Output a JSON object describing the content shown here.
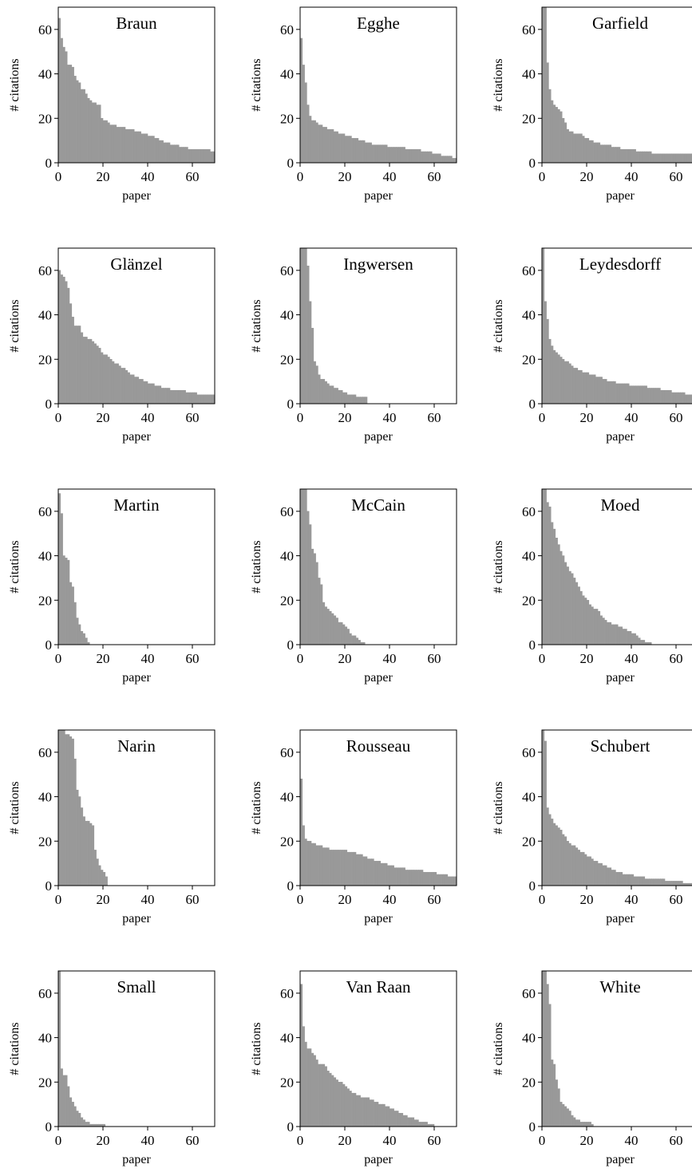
{
  "chart_data": [
    {
      "type": "bar",
      "title": "Braun",
      "xlabel": "paper",
      "ylabel": "# citations",
      "xlim": [
        0,
        70
      ],
      "ylim": [
        0,
        70
      ],
      "xticks": [
        0,
        20,
        40,
        60
      ],
      "yticks": [
        0,
        20,
        40,
        60
      ],
      "values": [
        65,
        56,
        52,
        50,
        44,
        44,
        43,
        39,
        37,
        36,
        33,
        33,
        31,
        29,
        28,
        27,
        27,
        26,
        26,
        20,
        19,
        19,
        18,
        17,
        17,
        17,
        16,
        16,
        16,
        16,
        15,
        15,
        15,
        15,
        14,
        14,
        14,
        13,
        13,
        13,
        12,
        12,
        12,
        11,
        11,
        10,
        10,
        9,
        9,
        9,
        8,
        8,
        8,
        8,
        7,
        7,
        7,
        7,
        6,
        6,
        6,
        6,
        6,
        6,
        6,
        6,
        6,
        6,
        5,
        5
      ]
    },
    {
      "type": "bar",
      "title": "Egghe",
      "xlabel": "paper",
      "ylabel": "# citations",
      "xlim": [
        0,
        70
      ],
      "ylim": [
        0,
        70
      ],
      "xticks": [
        0,
        20,
        40,
        60
      ],
      "yticks": [
        0,
        20,
        40,
        60
      ],
      "values": [
        56,
        44,
        36,
        26,
        21,
        19,
        19,
        18,
        17,
        17,
        16,
        16,
        15,
        15,
        15,
        14,
        14,
        13,
        13,
        13,
        12,
        12,
        12,
        11,
        11,
        11,
        10,
        10,
        10,
        9,
        9,
        9,
        8,
        8,
        8,
        8,
        8,
        8,
        8,
        7,
        7,
        7,
        7,
        7,
        7,
        7,
        7,
        6,
        6,
        6,
        6,
        6,
        6,
        6,
        5,
        5,
        5,
        5,
        5,
        4,
        4,
        4,
        4,
        3,
        3,
        3,
        3,
        3,
        2,
        2
      ]
    },
    {
      "type": "bar",
      "title": "Garfield",
      "xlabel": "paper",
      "ylabel": "# citations",
      "xlim": [
        0,
        70
      ],
      "ylim": [
        0,
        70
      ],
      "xticks": [
        0,
        20,
        40,
        60
      ],
      "yticks": [
        0,
        20,
        40,
        60
      ],
      "values": [
        72,
        70,
        45,
        33,
        28,
        26,
        25,
        24,
        23,
        20,
        18,
        15,
        14,
        14,
        13,
        13,
        13,
        13,
        12,
        11,
        11,
        10,
        10,
        9,
        9,
        9,
        8,
        8,
        8,
        8,
        8,
        7,
        7,
        7,
        7,
        6,
        6,
        6,
        6,
        6,
        6,
        6,
        5,
        5,
        5,
        5,
        5,
        5,
        5,
        4,
        4,
        4,
        4,
        4,
        4,
        4,
        4,
        4,
        4,
        4,
        4,
        4,
        4,
        4,
        4,
        4,
        4,
        4,
        4,
        4
      ]
    },
    {
      "type": "bar",
      "title": "Glänzel",
      "xlabel": "paper",
      "ylabel": "# citations",
      "xlim": [
        0,
        70
      ],
      "ylim": [
        0,
        70
      ],
      "xticks": [
        0,
        20,
        40,
        60
      ],
      "yticks": [
        0,
        20,
        40,
        60
      ],
      "values": [
        60,
        58,
        57,
        55,
        52,
        45,
        39,
        35,
        35,
        35,
        32,
        30,
        30,
        29,
        29,
        28,
        27,
        26,
        25,
        23,
        22,
        22,
        21,
        20,
        19,
        18,
        18,
        17,
        16,
        16,
        15,
        14,
        13,
        13,
        12,
        12,
        11,
        11,
        10,
        10,
        9,
        9,
        9,
        8,
        8,
        8,
        7,
        7,
        7,
        7,
        6,
        6,
        6,
        6,
        6,
        6,
        6,
        5,
        5,
        5,
        5,
        5,
        4,
        4,
        4,
        4,
        4,
        4,
        4,
        4
      ]
    },
    {
      "type": "bar",
      "title": "Ingwersen",
      "xlabel": "paper",
      "ylabel": "# citations",
      "xlim": [
        0,
        70
      ],
      "ylim": [
        0,
        70
      ],
      "xticks": [
        0,
        20,
        40,
        60
      ],
      "yticks": [
        0,
        20,
        40,
        60
      ],
      "values": [
        72,
        72,
        72,
        62,
        46,
        34,
        19,
        17,
        13,
        11,
        11,
        10,
        9,
        8,
        8,
        7,
        7,
        6,
        6,
        5,
        5,
        4,
        4,
        4,
        4,
        3,
        3,
        3,
        3,
        3
      ]
    },
    {
      "type": "bar",
      "title": "Leydesdorff",
      "xlabel": "paper",
      "ylabel": "# citations",
      "xlim": [
        0,
        70
      ],
      "ylim": [
        0,
        70
      ],
      "xticks": [
        0,
        20,
        40,
        60
      ],
      "yticks": [
        0,
        20,
        40,
        60
      ],
      "values": [
        70,
        46,
        38,
        29,
        26,
        24,
        23,
        22,
        21,
        20,
        19,
        19,
        18,
        17,
        16,
        16,
        15,
        15,
        14,
        14,
        14,
        13,
        13,
        13,
        12,
        12,
        12,
        11,
        11,
        10,
        10,
        10,
        10,
        9,
        9,
        9,
        9,
        9,
        9,
        8,
        8,
        8,
        8,
        8,
        8,
        8,
        8,
        7,
        7,
        7,
        7,
        7,
        7,
        6,
        6,
        6,
        6,
        6,
        5,
        5,
        5,
        5,
        5,
        5,
        4,
        4,
        4,
        4,
        3,
        3
      ]
    },
    {
      "type": "bar",
      "title": "Martin",
      "xlabel": "paper",
      "ylabel": "# citations",
      "xlim": [
        0,
        70
      ],
      "ylim": [
        0,
        70
      ],
      "xticks": [
        0,
        20,
        40,
        60
      ],
      "yticks": [
        0,
        20,
        40,
        60
      ],
      "values": [
        68,
        59,
        40,
        39,
        38,
        28,
        26,
        19,
        12,
        9,
        6,
        5,
        3,
        1
      ]
    },
    {
      "type": "bar",
      "title": "McCain",
      "xlabel": "paper",
      "ylabel": "# citations",
      "xlim": [
        0,
        70
      ],
      "ylim": [
        0,
        70
      ],
      "xticks": [
        0,
        20,
        40,
        60
      ],
      "yticks": [
        0,
        20,
        40,
        60
      ],
      "values": [
        72,
        72,
        72,
        60,
        54,
        43,
        41,
        37,
        30,
        27,
        19,
        17,
        16,
        15,
        14,
        13,
        12,
        10,
        10,
        9,
        8,
        7,
        5,
        4,
        4,
        3,
        2,
        1,
        1
      ]
    },
    {
      "type": "bar",
      "title": "Moed",
      "xlabel": "paper",
      "ylabel": "# citations",
      "xlim": [
        0,
        70
      ],
      "ylim": [
        0,
        70
      ],
      "xticks": [
        0,
        20,
        40,
        60
      ],
      "yticks": [
        0,
        20,
        40,
        60
      ],
      "values": [
        70,
        70,
        64,
        62,
        55,
        52,
        48,
        45,
        42,
        40,
        37,
        35,
        33,
        32,
        30,
        28,
        26,
        24,
        22,
        21,
        20,
        18,
        17,
        16,
        16,
        15,
        13,
        12,
        11,
        10,
        10,
        9,
        9,
        9,
        8,
        8,
        7,
        7,
        6,
        6,
        5,
        5,
        4,
        3,
        2,
        2,
        1,
        1,
        1
      ]
    },
    {
      "type": "bar",
      "title": "Narin",
      "xlabel": "paper",
      "ylabel": "# citations",
      "xlim": [
        0,
        70
      ],
      "ylim": [
        0,
        70
      ],
      "xticks": [
        0,
        20,
        40,
        60
      ],
      "yticks": [
        0,
        20,
        40,
        60
      ],
      "values": [
        70,
        70,
        70,
        68,
        68,
        67,
        66,
        57,
        43,
        40,
        35,
        31,
        29,
        29,
        28,
        27,
        16,
        12,
        9,
        7,
        6,
        4
      ]
    },
    {
      "type": "bar",
      "title": "Rousseau",
      "xlabel": "paper",
      "ylabel": "# citations",
      "xlim": [
        0,
        70
      ],
      "ylim": [
        0,
        70
      ],
      "xticks": [
        0,
        20,
        40,
        60
      ],
      "yticks": [
        0,
        20,
        40,
        60
      ],
      "values": [
        48,
        27,
        21,
        20,
        20,
        19,
        19,
        18,
        18,
        18,
        17,
        17,
        17,
        16,
        16,
        16,
        16,
        16,
        16,
        16,
        16,
        15,
        15,
        15,
        15,
        14,
        14,
        14,
        13,
        13,
        12,
        12,
        12,
        11,
        11,
        11,
        10,
        10,
        10,
        9,
        9,
        9,
        8,
        8,
        8,
        8,
        8,
        7,
        7,
        7,
        7,
        7,
        7,
        7,
        7,
        6,
        6,
        6,
        6,
        6,
        6,
        5,
        5,
        5,
        5,
        5,
        4,
        4,
        4,
        4
      ]
    },
    {
      "type": "bar",
      "title": "Schubert",
      "xlabel": "paper",
      "ylabel": "# citations",
      "xlim": [
        0,
        70
      ],
      "ylim": [
        0,
        70
      ],
      "xticks": [
        0,
        20,
        40,
        60
      ],
      "yticks": [
        0,
        20,
        40,
        60
      ],
      "values": [
        70,
        65,
        35,
        32,
        30,
        28,
        27,
        26,
        25,
        23,
        22,
        20,
        19,
        18,
        18,
        17,
        16,
        15,
        15,
        14,
        13,
        13,
        12,
        11,
        11,
        10,
        10,
        9,
        9,
        8,
        8,
        7,
        7,
        6,
        6,
        6,
        5,
        5,
        5,
        5,
        5,
        4,
        4,
        4,
        4,
        4,
        3,
        3,
        3,
        3,
        3,
        3,
        3,
        3,
        3,
        2,
        2,
        2,
        2,
        2,
        2,
        2,
        2,
        1,
        1,
        1,
        1,
        1,
        1,
        1
      ]
    },
    {
      "type": "bar",
      "title": "Small",
      "xlabel": "paper",
      "ylabel": "# citations",
      "xlim": [
        0,
        70
      ],
      "ylim": [
        0,
        70
      ],
      "xticks": [
        0,
        20,
        40,
        60
      ],
      "yticks": [
        0,
        20,
        40,
        60
      ],
      "values": [
        70,
        26,
        23,
        23,
        18,
        13,
        11,
        9,
        7,
        6,
        4,
        3,
        2,
        2,
        1,
        1,
        1,
        1,
        1,
        1,
        1
      ]
    },
    {
      "type": "bar",
      "title": "Van Raan",
      "xlabel": "paper",
      "ylabel": "# citations",
      "xlim": [
        0,
        70
      ],
      "ylim": [
        0,
        70
      ],
      "xticks": [
        0,
        20,
        40,
        60
      ],
      "yticks": [
        0,
        20,
        40,
        60
      ],
      "values": [
        64,
        45,
        38,
        35,
        35,
        33,
        32,
        30,
        28,
        28,
        28,
        27,
        25,
        24,
        23,
        22,
        21,
        20,
        20,
        19,
        18,
        17,
        16,
        15,
        15,
        14,
        14,
        13,
        13,
        13,
        13,
        12,
        12,
        11,
        11,
        10,
        10,
        10,
        9,
        9,
        8,
        8,
        7,
        7,
        6,
        6,
        5,
        5,
        4,
        4,
        4,
        3,
        3,
        2,
        2,
        2,
        2,
        1,
        1,
        1
      ]
    },
    {
      "type": "bar",
      "title": "White",
      "xlabel": "paper",
      "ylabel": "# citations",
      "xlim": [
        0,
        70
      ],
      "ylim": [
        0,
        70
      ],
      "xticks": [
        0,
        20,
        40,
        60
      ],
      "yticks": [
        0,
        20,
        40,
        60
      ],
      "values": [
        70,
        70,
        64,
        55,
        30,
        28,
        21,
        17,
        11,
        10,
        9,
        8,
        7,
        5,
        4,
        3,
        3,
        2,
        2,
        2,
        2,
        2,
        1
      ]
    }
  ]
}
